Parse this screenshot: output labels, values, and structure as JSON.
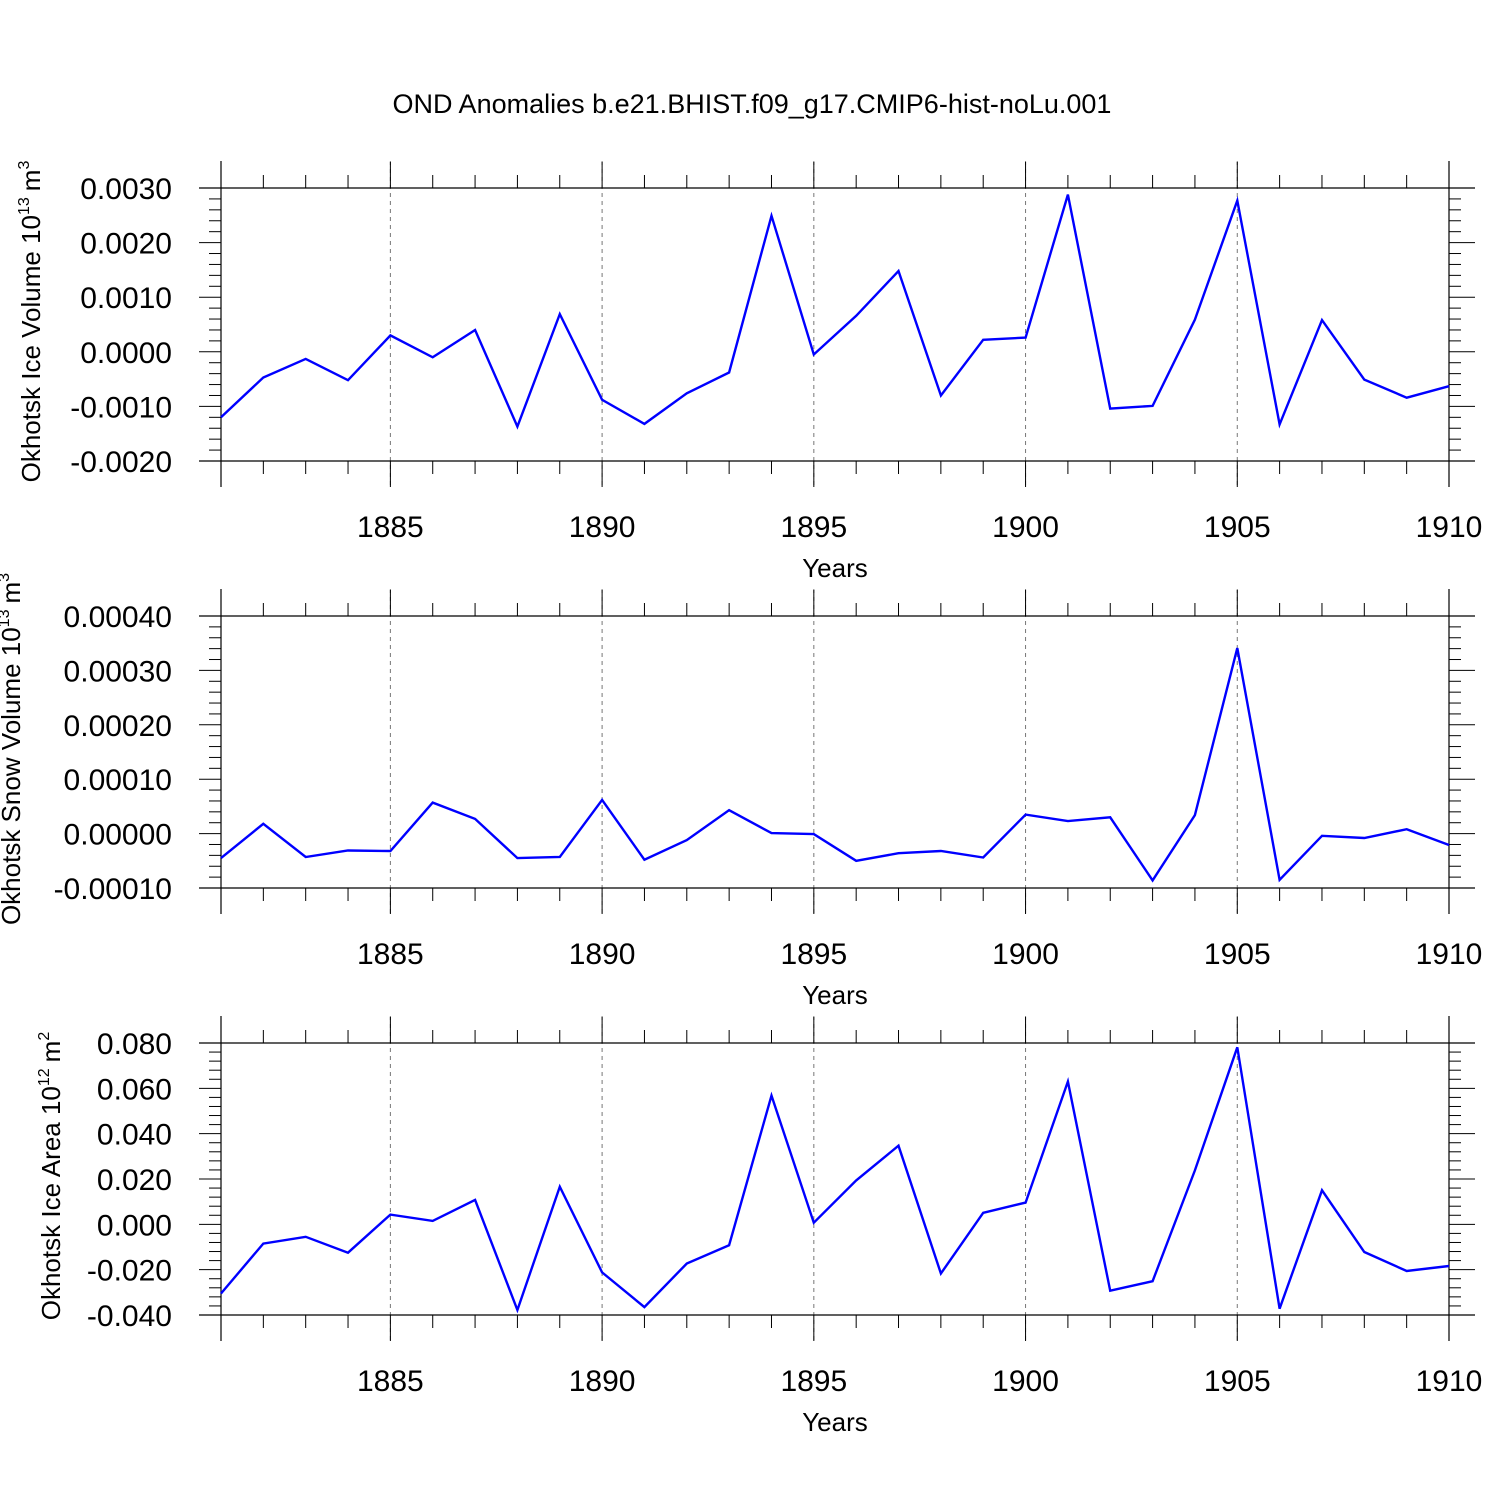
{
  "title": "OND Anomalies b.e21.BHIST.f09_g17.CMIP6-hist-noLu.001",
  "colors": {
    "line": "#0000ff",
    "axis": "#000000",
    "grid": "#777777"
  },
  "chart_data": [
    {
      "type": "line",
      "ylabel": "Okhotsk Ice Volume 10",
      "ylabel_sup": "13",
      "ylabel_unit": "m",
      "ylabel_unit_sup": "3",
      "xlabel": "Years",
      "xlim": [
        1881,
        1910
      ],
      "ylim": [
        -0.002,
        0.003
      ],
      "x_ticks": [
        1885,
        1890,
        1895,
        1900,
        1905,
        1910
      ],
      "y_ticks": [
        "0.0030",
        "0.0020",
        "0.0010",
        "0.0000",
        "-0.0010",
        "-0.0020"
      ],
      "y_tick_values": [
        0.003,
        0.002,
        0.001,
        0.0,
        -0.001,
        -0.002
      ],
      "grid_x": true,
      "series": [
        {
          "name": "Okhotsk Ice Volume",
          "x": [
            1881,
            1882,
            1883,
            1884,
            1885,
            1886,
            1887,
            1888,
            1889,
            1890,
            1891,
            1892,
            1893,
            1894,
            1895,
            1896,
            1897,
            1898,
            1899,
            1900,
            1901,
            1902,
            1903,
            1904,
            1905,
            1906,
            1907,
            1908,
            1909,
            1910
          ],
          "values": [
            -0.0012,
            -0.00047,
            -0.00013,
            -0.00052,
            0.0003,
            -0.0001,
            0.0004,
            -0.00137,
            0.00069,
            -0.00088,
            -0.00132,
            -0.00076,
            -0.00038,
            0.00249,
            -5e-05,
            0.00066,
            0.00148,
            -0.0008,
            0.00022,
            0.00026,
            0.00288,
            -0.00104,
            -0.00099,
            0.00059,
            0.00277,
            -0.00133,
            0.00058,
            -0.00051,
            -0.00084,
            -0.00063
          ]
        }
      ]
    },
    {
      "type": "line",
      "ylabel": "Okhotsk Snow Volume 10",
      "ylabel_sup": "13",
      "ylabel_unit": "m",
      "ylabel_unit_sup": "3",
      "xlabel": "Years",
      "xlim": [
        1881,
        1910
      ],
      "ylim": [
        -0.0001,
        0.0004
      ],
      "x_ticks": [
        1885,
        1890,
        1895,
        1900,
        1905,
        1910
      ],
      "y_ticks": [
        "0.00040",
        "0.00030",
        "0.00020",
        "0.00010",
        "0.00000",
        "-0.00010"
      ],
      "y_tick_values": [
        0.0004,
        0.0003,
        0.0002,
        0.0001,
        0.0,
        -0.0001
      ],
      "grid_x": true,
      "series": [
        {
          "name": "Okhotsk Snow Volume",
          "x": [
            1881,
            1882,
            1883,
            1884,
            1885,
            1886,
            1887,
            1888,
            1889,
            1890,
            1891,
            1892,
            1893,
            1894,
            1895,
            1896,
            1897,
            1898,
            1899,
            1900,
            1901,
            1902,
            1903,
            1904,
            1905,
            1906,
            1907,
            1908,
            1909,
            1910
          ],
          "values": [
            -4.5e-05,
            1.8e-05,
            -4.3e-05,
            -3.1e-05,
            -3.2e-05,
            5.7e-05,
            2.7e-05,
            -4.5e-05,
            -4.3e-05,
            6.2e-05,
            -4.8e-05,
            -1.2e-05,
            4.3e-05,
            1e-06,
            -1e-06,
            -5e-05,
            -3.6e-05,
            -3.2e-05,
            -4.4e-05,
            3.5e-05,
            2.3e-05,
            3e-05,
            -8.6e-05,
            3.4e-05,
            0.000341,
            -8.5e-05,
            -4e-06,
            -8e-06,
            8e-06,
            -2.1e-05
          ]
        }
      ]
    },
    {
      "type": "line",
      "ylabel": "Okhotsk Ice Area 10",
      "ylabel_sup": "12",
      "ylabel_unit": "m",
      "ylabel_unit_sup": "2",
      "xlabel": "Years",
      "xlim": [
        1881,
        1910
      ],
      "ylim": [
        -0.04,
        0.08
      ],
      "x_ticks": [
        1885,
        1890,
        1895,
        1900,
        1905,
        1910
      ],
      "y_ticks": [
        "0.080",
        "0.060",
        "0.040",
        "0.020",
        "0.000",
        "-0.020",
        "-0.040"
      ],
      "y_tick_values": [
        0.08,
        0.06,
        0.04,
        0.02,
        0.0,
        -0.02,
        -0.04
      ],
      "grid_x": true,
      "series": [
        {
          "name": "Okhotsk Ice Area",
          "x": [
            1881,
            1882,
            1883,
            1884,
            1885,
            1886,
            1887,
            1888,
            1889,
            1890,
            1891,
            1892,
            1893,
            1894,
            1895,
            1896,
            1897,
            1898,
            1899,
            1900,
            1901,
            1902,
            1903,
            1904,
            1905,
            1906,
            1907,
            1908,
            1909,
            1910
          ],
          "values": [
            -0.0305,
            -0.0085,
            -0.0055,
            -0.0125,
            0.0043,
            0.0015,
            0.0108,
            -0.0378,
            0.0166,
            -0.0212,
            -0.0365,
            -0.0173,
            -0.0092,
            0.0568,
            0.0007,
            0.0194,
            0.0347,
            -0.0217,
            0.0051,
            0.0096,
            0.063,
            -0.0293,
            -0.0251,
            0.0238,
            0.0781,
            -0.0372,
            0.015,
            -0.0122,
            -0.0206,
            -0.0184
          ]
        }
      ]
    }
  ]
}
